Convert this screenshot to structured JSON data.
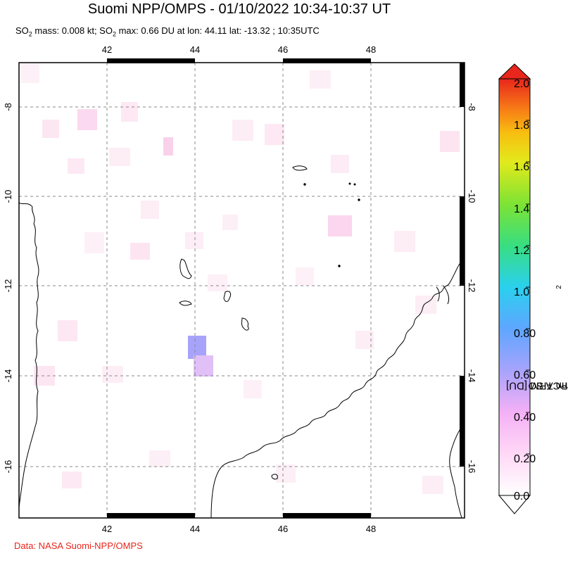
{
  "title": "Suomi NPP/OMPS - 01/10/2022 10:34-10:37 UT",
  "subtitle": {
    "so2_prefix": "SO",
    "so2_sub": "2",
    "mass_text": " mass: 0.008 kt; SO",
    "max_sub": "2",
    "max_text": " max: 0.66 DU at lon: 44.11 lat: -13.32 ; 10:35UTC"
  },
  "credit": "Data: NASA Suomi-NPP/OMPS",
  "map": {
    "lon_ticks": [
      "42",
      "44",
      "46",
      "48"
    ],
    "lat_ticks": [
      "-8",
      "-10",
      "-12",
      "-14",
      "-16"
    ],
    "lon_range": [
      40,
      50
    ],
    "lat_range": [
      -17,
      -7
    ],
    "grid": true
  },
  "colorbar": {
    "label_prefix": "PCA SO",
    "label_sub": "2",
    "label_suffix": " column TRM [DU]",
    "ticks": [
      "2.0",
      "1.8",
      "1.6",
      "1.4",
      "1.2",
      "1.0",
      "0.80",
      "0.60",
      "0.40",
      "0.20",
      "0.0"
    ],
    "range": [
      0.0,
      2.0
    ],
    "colors": [
      "#ffffff",
      "#ff9cff",
      "#a9a4fc",
      "#5aa6ff",
      "#29e6e0",
      "#3ce043",
      "#d8ec20",
      "#f7c10c",
      "#f98215",
      "#ea2e17",
      "#e8261c"
    ]
  },
  "so2_max": {
    "lon": 44.11,
    "lat": -13.32,
    "value": 0.66
  }
}
